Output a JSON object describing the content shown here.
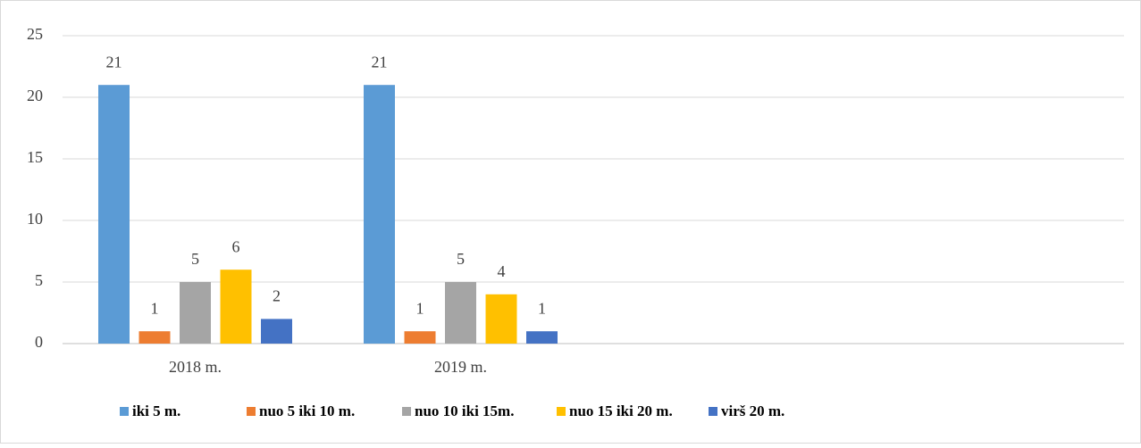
{
  "chart_data": {
    "type": "bar",
    "categories": [
      "2018 m.",
      "2019 m.",
      null,
      null
    ],
    "series": [
      {
        "name": "iki 5 m.",
        "color": "#5b9bd5",
        "values": [
          21,
          21,
          null,
          null
        ]
      },
      {
        "name": "nuo 5 iki 10 m.",
        "color": "#ed7d31",
        "values": [
          1,
          1,
          null,
          null
        ]
      },
      {
        "name": "nuo 10 iki 15m.",
        "color": "#a5a5a5",
        "values": [
          5,
          5,
          null,
          null
        ]
      },
      {
        "name": "nuo 15 iki 20 m.",
        "color": "#ffc000",
        "values": [
          6,
          4,
          null,
          null
        ]
      },
      {
        "name": "virš 20 m.",
        "color": "#4472c4",
        "values": [
          2,
          1,
          null,
          null
        ]
      }
    ],
    "ylim": [
      0,
      25
    ],
    "yticks": [
      0,
      5,
      10,
      15,
      20,
      25
    ],
    "grid": true,
    "legend": "bottom"
  }
}
